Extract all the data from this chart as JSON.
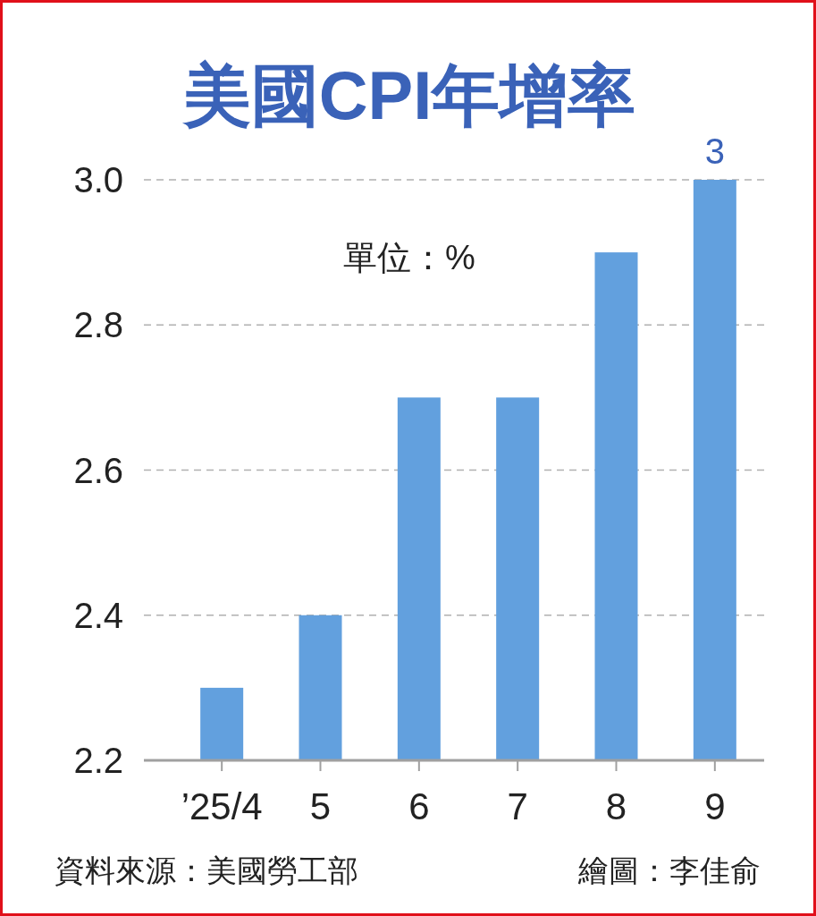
{
  "chart_data": {
    "type": "bar",
    "title": "美國CPI年增率",
    "categories": [
      "’25/4",
      "5",
      "6",
      "7",
      "8",
      "9"
    ],
    "values": [
      2.3,
      2.4,
      2.7,
      2.7,
      2.9,
      3.0
    ],
    "value_labels": [
      null,
      null,
      null,
      null,
      null,
      "3"
    ],
    "color": "#62a0de",
    "ylim": [
      2.2,
      3.0
    ],
    "yticks": [
      2.2,
      2.4,
      2.6,
      2.8,
      {
        "value": 3.0,
        "label": "3.0"
      }
    ],
    "grid": "y",
    "annotations": [
      "單位：%",
      "資料來源：美國勞工部",
      "繪圖：李佳俞"
    ]
  }
}
